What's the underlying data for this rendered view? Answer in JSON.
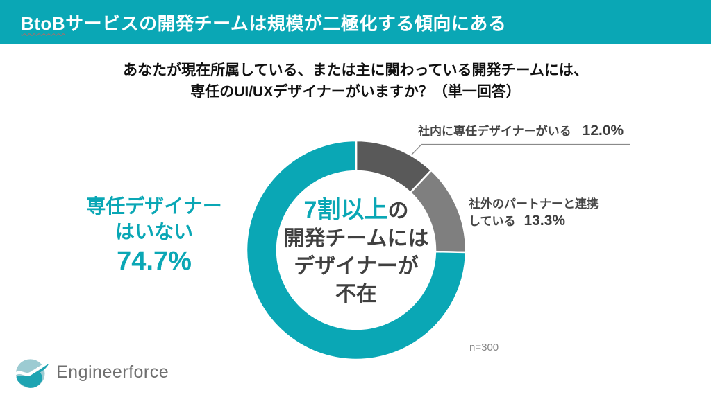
{
  "header": {
    "title_prefix": "BtoB",
    "title_rest": "サービスの開発チームは規模が二極化する傾向にある",
    "bg_color": "#0AA7B5"
  },
  "question": {
    "line1": "あなたが現在所属している、または主に関わっている開発チームには、",
    "line2": "専任のUI/UXデザイナーがいますか？（単一回答）"
  },
  "chart_data": {
    "type": "pie",
    "subtype": "donut",
    "title": "専任のUI/UXデザイナーがいますか？（単一回答）",
    "start_angle_deg": 0,
    "direction": "clockwise",
    "sample_size_label": "n=300",
    "slices": [
      {
        "label": "社内に専任デザイナーがいる",
        "value": 12.0,
        "display": "12.0%",
        "color": "#595959"
      },
      {
        "label": "社外のパートナーと連携している",
        "value": 13.3,
        "display": "13.3%",
        "color": "#7F7F7F"
      },
      {
        "label": "専任デザイナーはいない",
        "value": 74.7,
        "display": "74.7%",
        "color": "#0AA7B5"
      }
    ],
    "center_annotation": "7割以上の開発チームにはデザイナーが不在"
  },
  "center_label": {
    "highlight": "7割以上",
    "line1_rest": "の",
    "line2": "開発チームには",
    "line3": "デザイナーが",
    "line4": "不在"
  },
  "callouts": {
    "none": {
      "line1": "専任デザイナー",
      "line2": "はいない"
    },
    "external": {
      "line1": "社外のパートナーと連携",
      "line2": "している"
    }
  },
  "footnote": "n=300",
  "footer": {
    "logo_text": "Engineerforce"
  },
  "colors": {
    "teal": "#0AA7B5",
    "dark_gray": "#595959",
    "light_gray": "#7F7F7F",
    "text_dark": "#404040",
    "leader_line": "#8a8a8a"
  }
}
